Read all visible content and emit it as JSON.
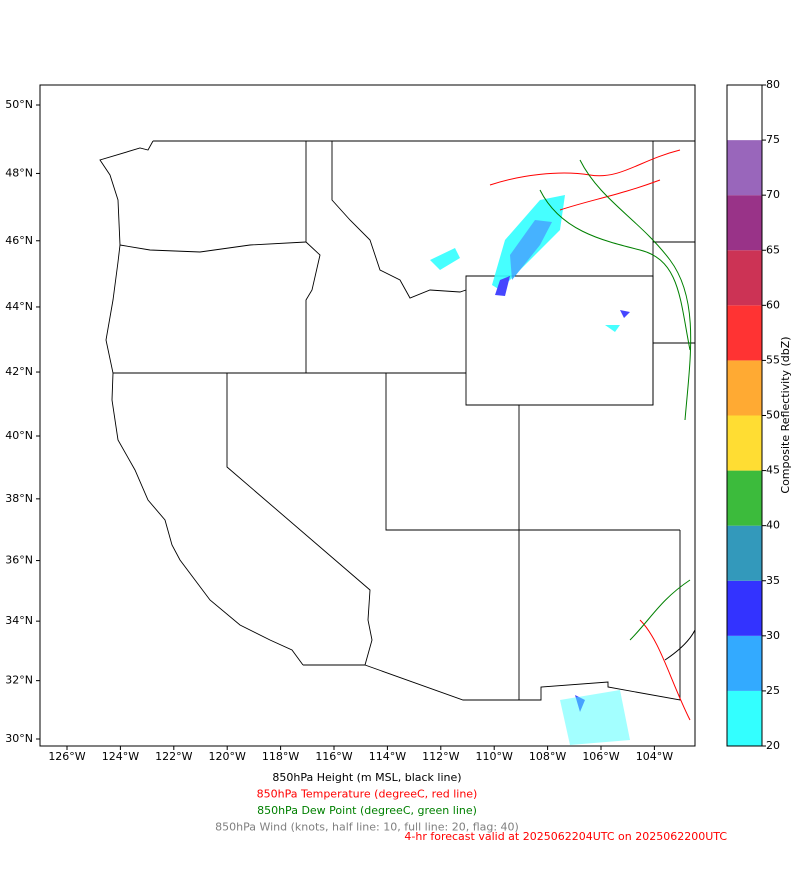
{
  "map": {
    "xticks": [
      {
        "value": -126,
        "label": "126°W"
      },
      {
        "value": -124,
        "label": "124°W"
      },
      {
        "value": -122,
        "label": "122°W"
      },
      {
        "value": -120,
        "label": "120°W"
      },
      {
        "value": -118,
        "label": "118°W"
      },
      {
        "value": -116,
        "label": "116°W"
      },
      {
        "value": -114,
        "label": "114°W"
      },
      {
        "value": -112,
        "label": "112°W"
      },
      {
        "value": -110,
        "label": "110°W"
      },
      {
        "value": -108,
        "label": "108°W"
      },
      {
        "value": -106,
        "label": "106°W"
      },
      {
        "value": -104,
        "label": "104°W"
      }
    ],
    "yticks": [
      {
        "value": 30,
        "label": "30°N"
      },
      {
        "value": 32,
        "label": "32°N"
      },
      {
        "value": 34,
        "label": "34°N"
      },
      {
        "value": 36,
        "label": "36°N"
      },
      {
        "value": 38,
        "label": "38°N"
      },
      {
        "value": 40,
        "label": "40°N"
      },
      {
        "value": 42,
        "label": "42°N"
      },
      {
        "value": 44,
        "label": "44°N"
      },
      {
        "value": 46,
        "label": "46°N"
      },
      {
        "value": 48,
        "label": "48°N"
      },
      {
        "value": 50,
        "label": "50°N"
      }
    ],
    "colorbar": {
      "label": "Composite Reflectivity (dbZ)",
      "ticks": [
        20,
        25,
        30,
        35,
        40,
        45,
        50,
        55,
        60,
        65,
        70,
        75,
        80
      ],
      "colors": [
        "#33ffff",
        "#33aaff",
        "#3333ff",
        "#3399bb",
        "#3cbb3c",
        "#ffdd33",
        "#ffaa33",
        "#ff3333",
        "#cc3355",
        "#993388",
        "#9966bb",
        "#ffffff"
      ]
    }
  },
  "captions": [
    {
      "text": "850hPa Height (m MSL, black line)",
      "color": "#000000"
    },
    {
      "text": "850hPa Temperature (degreeC, red line)",
      "color": "#ff0000"
    },
    {
      "text": "850hPa Dew Point (degreeC, green line)",
      "color": "#008000"
    },
    {
      "text": "850hPa Wind (knots, half line: 10, full line: 20, flag: 40)",
      "color": "#808080"
    }
  ],
  "forecast": {
    "text": "4-hr forecast valid at 2025062204UTC on 2025062200UTC",
    "color": "#ff0000"
  }
}
